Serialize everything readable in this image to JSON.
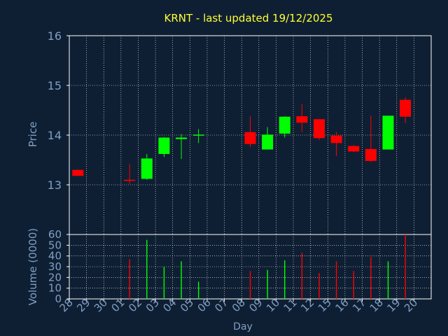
{
  "colors": {
    "background": "#0f1f33",
    "title": "#ffff33",
    "axis_text": "#7f9fc4",
    "frame": "#ffffff",
    "grid": "#ffffff",
    "up": "#00ff00",
    "down": "#ff0000"
  },
  "chart_data": [
    {
      "type": "candlestick",
      "title": "KRNT - last updated 19/12/2025",
      "ylabel": "Price",
      "ylim": [
        12.0,
        16.0
      ],
      "yticks": [
        "13",
        "14",
        "15",
        "16"
      ],
      "grid": true,
      "categories": [
        "28",
        "29",
        "30",
        "01",
        "02",
        "03",
        "04",
        "05",
        "06",
        "07",
        "08",
        "09",
        "10",
        "11",
        "12",
        "15",
        "16",
        "17",
        "18",
        "19",
        "20"
      ],
      "candles": [
        {
          "x": "28",
          "open": 13.3,
          "high": 13.3,
          "low": 13.18,
          "close": 13.18
        },
        {
          "x": "01",
          "open": 13.1,
          "high": 13.42,
          "low": 13.02,
          "close": 13.08
        },
        {
          "x": "02",
          "open": 13.12,
          "high": 13.62,
          "low": 13.1,
          "close": 13.53
        },
        {
          "x": "03",
          "open": 13.62,
          "high": 13.96,
          "low": 13.56,
          "close": 13.95
        },
        {
          "x": "04",
          "open": 13.92,
          "high": 14.02,
          "low": 13.52,
          "close": 13.95
        },
        {
          "x": "05",
          "open": 13.99,
          "high": 14.12,
          "low": 13.84,
          "close": 14.01
        },
        {
          "x": "08",
          "open": 14.06,
          "high": 14.38,
          "low": 13.76,
          "close": 13.82
        },
        {
          "x": "09",
          "open": 13.71,
          "high": 14.16,
          "low": 13.71,
          "close": 14.01
        },
        {
          "x": "10",
          "open": 14.03,
          "high": 14.38,
          "low": 13.95,
          "close": 14.37
        },
        {
          "x": "11",
          "open": 14.38,
          "high": 14.62,
          "low": 14.06,
          "close": 14.25
        },
        {
          "x": "12",
          "open": 14.32,
          "high": 14.32,
          "low": 13.9,
          "close": 13.94
        },
        {
          "x": "15",
          "open": 13.99,
          "high": 14.06,
          "low": 13.58,
          "close": 13.84
        },
        {
          "x": "16",
          "open": 13.78,
          "high": 13.8,
          "low": 13.66,
          "close": 13.67
        },
        {
          "x": "17",
          "open": 13.72,
          "high": 14.39,
          "low": 13.46,
          "close": 13.48
        },
        {
          "x": "18",
          "open": 13.71,
          "high": 14.39,
          "low": 13.71,
          "close": 14.39
        },
        {
          "x": "19",
          "open": 14.71,
          "high": 14.76,
          "low": 14.24,
          "close": 14.37
        }
      ]
    },
    {
      "type": "bar",
      "ylabel": "Volume (0000)",
      "xlabel": "Day",
      "ylim": [
        0,
        60
      ],
      "yticks": [
        "0",
        "10",
        "20",
        "30",
        "40",
        "50",
        "60"
      ],
      "grid": true,
      "categories": [
        "28",
        "29",
        "30",
        "01",
        "02",
        "03",
        "04",
        "05",
        "06",
        "07",
        "08",
        "09",
        "10",
        "11",
        "12",
        "15",
        "16",
        "17",
        "18",
        "19",
        "20"
      ],
      "bars": [
        {
          "x": "01",
          "value": 37,
          "dir": "down"
        },
        {
          "x": "02",
          "value": 55,
          "dir": "up"
        },
        {
          "x": "03",
          "value": 30,
          "dir": "up"
        },
        {
          "x": "04",
          "value": 35,
          "dir": "up"
        },
        {
          "x": "05",
          "value": 16,
          "dir": "up"
        },
        {
          "x": "08",
          "value": 26,
          "dir": "down"
        },
        {
          "x": "09",
          "value": 27,
          "dir": "up"
        },
        {
          "x": "10",
          "value": 36,
          "dir": "up"
        },
        {
          "x": "11",
          "value": 43,
          "dir": "down"
        },
        {
          "x": "12",
          "value": 24,
          "dir": "down"
        },
        {
          "x": "15",
          "value": 35,
          "dir": "down"
        },
        {
          "x": "16",
          "value": 26,
          "dir": "down"
        },
        {
          "x": "17",
          "value": 39,
          "dir": "down"
        },
        {
          "x": "18",
          "value": 35,
          "dir": "up"
        },
        {
          "x": "19",
          "value": 60,
          "dir": "down"
        }
      ]
    }
  ]
}
